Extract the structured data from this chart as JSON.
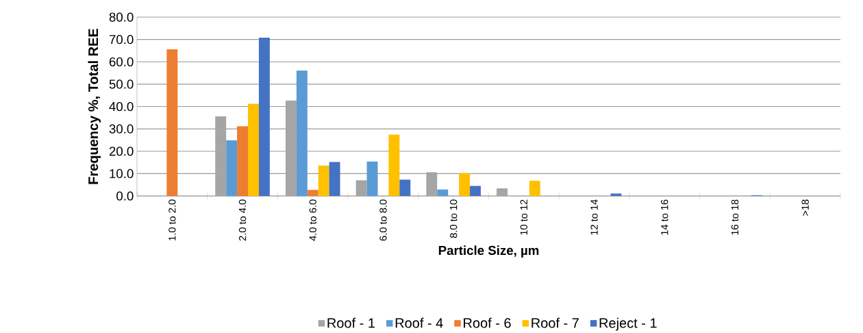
{
  "chart_data": {
    "type": "bar",
    "xlabel": "Particle Size, µm",
    "ylabel": "Frequency %, Total REE",
    "categories": [
      "1.0 to 2.0",
      "2.0 to 4.0",
      "4.0 to 6.0",
      "6.0 to 8.0",
      "8.0 to 10",
      "10 to 12",
      "12 to 14",
      "14 to 16",
      "16 to 18",
      ">18"
    ],
    "series": [
      {
        "name": "Roof - 1",
        "color": "#a5a5a5",
        "values": [
          0,
          35.6,
          42.7,
          7.0,
          10.6,
          3.4,
          0,
          0,
          0,
          0
        ]
      },
      {
        "name": "Roof - 4",
        "color": "#5b9bd5",
        "values": [
          0,
          24.9,
          56.1,
          15.4,
          2.9,
          0,
          0,
          0,
          0,
          0
        ]
      },
      {
        "name": "Roof - 6",
        "color": "#ed7d31",
        "values": [
          65.6,
          31.2,
          2.7,
          0,
          0,
          0,
          0,
          0,
          0,
          0
        ]
      },
      {
        "name": "Roof - 7",
        "color": "#ffc000",
        "values": [
          0,
          41.2,
          13.6,
          27.4,
          10.2,
          6.8,
          0,
          0,
          0,
          0
        ]
      },
      {
        "name": "Reject - 1",
        "color": "#4472c4",
        "values": [
          0,
          70.8,
          15.2,
          7.3,
          4.5,
          0,
          1.1,
          0,
          0.3,
          0
        ]
      }
    ],
    "ylim": [
      0,
      80
    ],
    "yticks": [
      {
        "value": 0,
        "label": "0.0"
      },
      {
        "value": 10,
        "label": "10.0"
      },
      {
        "value": 20,
        "label": "20.0"
      },
      {
        "value": 30,
        "label": "30.0"
      },
      {
        "value": 40,
        "label": "40.0"
      },
      {
        "value": 50,
        "label": "50.0"
      },
      {
        "value": 60,
        "label": "60.0"
      },
      {
        "value": 70,
        "label": "70.0"
      },
      {
        "value": 80,
        "label": "80.0"
      }
    ],
    "grid": "y",
    "legend": "bottom"
  }
}
